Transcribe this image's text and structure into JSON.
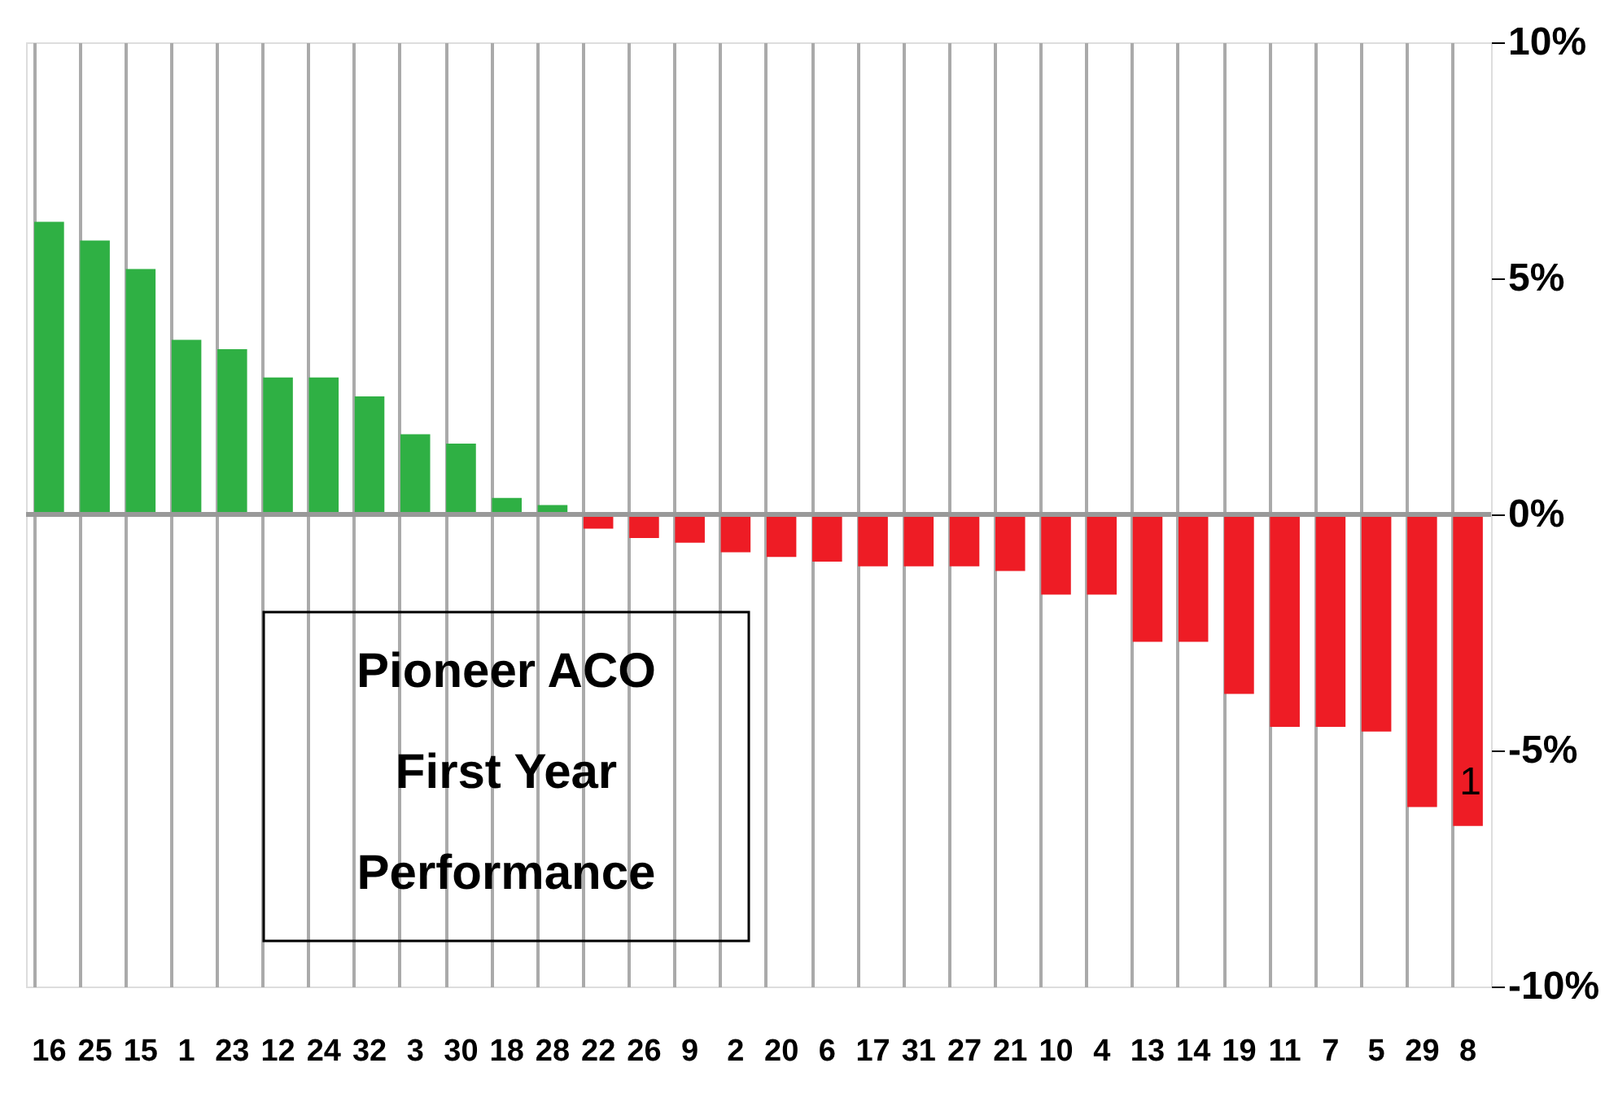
{
  "chart_data": {
    "type": "bar",
    "title": "Pioneer ACO\nFirst Year\nPerformance",
    "categories": [
      "16",
      "25",
      "15",
      "1",
      "23",
      "12",
      "24",
      "32",
      "3",
      "30",
      "18",
      "28",
      "22",
      "26",
      "9",
      "2",
      "20",
      "6",
      "17",
      "31",
      "27",
      "21",
      "10",
      "4",
      "13",
      "14",
      "19",
      "11",
      "7",
      "5",
      "29",
      "8"
    ],
    "values": [
      6.2,
      5.8,
      5.2,
      3.7,
      3.5,
      2.9,
      2.9,
      2.5,
      1.7,
      1.5,
      0.35,
      0.2,
      -0.3,
      -0.5,
      -0.6,
      -0.8,
      -0.9,
      -1.0,
      -1.1,
      -1.1,
      -1.1,
      -1.2,
      -1.7,
      -1.7,
      -2.7,
      -2.7,
      -3.8,
      -4.5,
      -4.5,
      -4.6,
      -6.2,
      -6.6
    ],
    "colors": [
      "#2fb044",
      "#2fb044",
      "#2fb044",
      "#2fb044",
      "#2fb044",
      "#2fb044",
      "#2fb044",
      "#2fb044",
      "#2fb044",
      "#2fb044",
      "#2fb044",
      "#2fb044",
      "#ee1c25",
      "#ee1c25",
      "#ee1c25",
      "#ee1c25",
      "#ee1c25",
      "#ee1c25",
      "#ee1c25",
      "#ee1c25",
      "#ee1c25",
      "#ee1c25",
      "#ee1c25",
      "#ee1c25",
      "#ee1c25",
      "#ee1c25",
      "#ee1c25",
      "#ee1c25",
      "#ee1c25",
      "#ee1c25",
      "#ee1c25",
      "#ee1c25"
    ],
    "ylim": [
      -10,
      10
    ],
    "yticks": [
      {
        "value": 10,
        "label": "10%"
      },
      {
        "value": 5,
        "label": "5%"
      },
      {
        "value": 0,
        "label": "0%"
      },
      {
        "value": -5,
        "label": "-5%"
      },
      {
        "value": -10,
        "label": "-10%"
      }
    ],
    "grid": "x",
    "annotations": [
      "1"
    ]
  }
}
